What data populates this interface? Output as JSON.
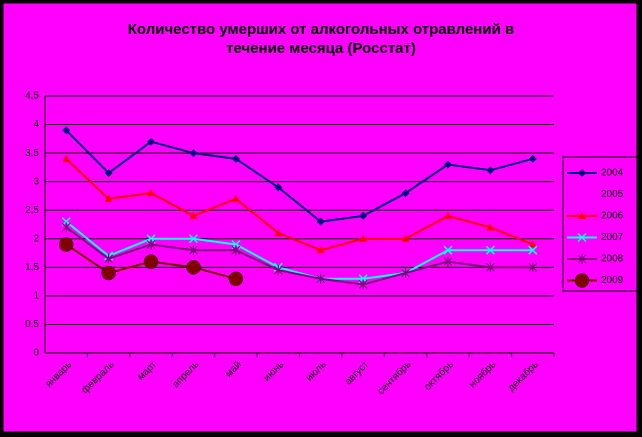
{
  "chart_data": {
    "type": "line",
    "title": "Количество умерших от алкогольных отравлений в\nтечение месяца (Росстат)",
    "categories": [
      "январь",
      "февраль",
      "март",
      "апрель",
      "май",
      "июнь",
      "июль",
      "август",
      "сентябрь",
      "октябрь",
      "ноябрь",
      "декабрь"
    ],
    "series": [
      {
        "name": "2004",
        "color": "#000080",
        "marker": "diamond",
        "values": [
          3.9,
          3.15,
          3.7,
          3.5,
          3.4,
          2.9,
          2.3,
          2.4,
          2.8,
          3.3,
          3.2,
          3.4
        ]
      },
      {
        "name": "2005",
        "color": "#FF00FF",
        "marker": "square",
        "values": [
          null,
          null,
          null,
          null,
          null,
          null,
          null,
          null,
          null,
          null,
          null,
          null
        ]
      },
      {
        "name": "2006",
        "color": "#FF0000",
        "marker": "triangle",
        "values": [
          3.4,
          2.7,
          2.8,
          2.4,
          2.7,
          2.1,
          1.8,
          2.0,
          2.0,
          2.4,
          2.2,
          1.9
        ]
      },
      {
        "name": "2007",
        "color": "#00FFFF",
        "marker": "x",
        "values": [
          2.3,
          1.7,
          2.0,
          2.0,
          1.9,
          1.5,
          1.3,
          1.3,
          1.4,
          1.8,
          1.8,
          1.8
        ]
      },
      {
        "name": "2008",
        "color": "#800080",
        "marker": "star",
        "values": [
          2.2,
          1.65,
          1.9,
          1.8,
          1.8,
          1.45,
          1.3,
          1.2,
          1.4,
          1.6,
          1.5,
          1.5
        ]
      },
      {
        "name": "2009",
        "color": "#800000",
        "marker": "circle",
        "values": [
          1.9,
          1.4,
          1.6,
          1.5,
          1.3,
          null,
          null,
          null,
          null,
          null,
          null,
          null
        ]
      }
    ],
    "ylim": [
      0,
      4.5
    ],
    "yticks": [
      0,
      {
        "value": 0.5,
        "label": "0,5"
      },
      1,
      {
        "value": 1.5,
        "label": "1,5"
      },
      2,
      {
        "value": 2.5,
        "label": "2,5"
      },
      3,
      {
        "value": 3.5,
        "label": "3,5"
      },
      4,
      {
        "value": 4.5,
        "label": "4,5"
      }
    ],
    "grid": true,
    "legend": "right",
    "background": "#FF00FF"
  }
}
